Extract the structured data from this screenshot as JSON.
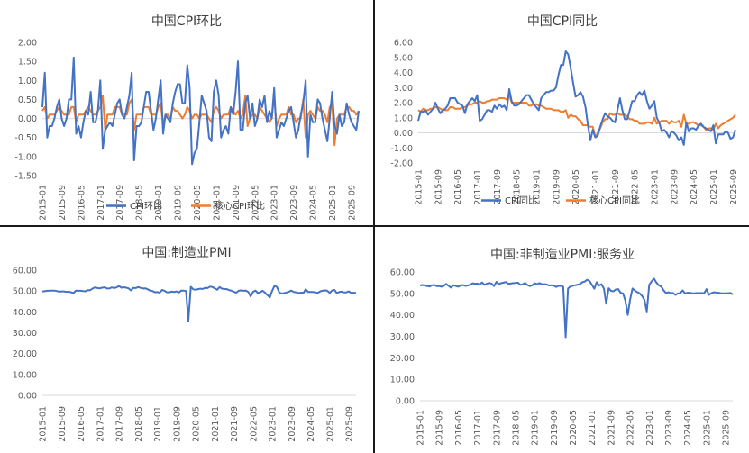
{
  "x_labels": [
    "2015-01",
    "2015-09",
    "2016-05",
    "2017-01",
    "2017-09",
    "2018-05",
    "2019-01",
    "2019-09",
    "2020-05",
    "2021-01",
    "2021-09",
    "2022-05",
    "2023-01",
    "2023-09",
    "2024-05",
    "2025-01",
    "2025-09"
  ],
  "colors": {
    "blue": "#4472C4",
    "orange": "#ED7D31",
    "zero": "#d9d9d9"
  },
  "chart_data": [
    {
      "type": "line",
      "title": "中国CPI环比",
      "x_labels_key": "x_labels",
      "y_ticks": [
        "2.00",
        "1.50",
        "1.00",
        "0.50",
        "0.00",
        "-0.50",
        "-1.00",
        "-1.50"
      ],
      "ylim": [
        -1.5,
        2.0
      ],
      "legend_position": "bottom",
      "series": [
        {
          "name": "CPI环比",
          "color": "blue",
          "values": [
            0.3,
            1.2,
            -0.5,
            -0.2,
            -0.2,
            0.0,
            0.3,
            0.5,
            0.0,
            -0.2,
            0.0,
            0.5,
            0.5,
            1.6,
            -0.4,
            -0.2,
            -0.5,
            -0.1,
            0.2,
            0.1,
            0.7,
            -0.1,
            -0.1,
            0.2,
            1.0,
            -0.8,
            -0.3,
            -0.2,
            -0.1,
            -0.2,
            0.1,
            0.4,
            0.5,
            0.1,
            0.0,
            0.3,
            0.6,
            1.2,
            -1.1,
            -0.2,
            -0.2,
            -0.1,
            0.3,
            0.7,
            0.7,
            0.2,
            -0.3,
            0.0,
            0.5,
            1.0,
            -0.4,
            0.1,
            0.0,
            -0.1,
            0.4,
            0.7,
            0.9,
            0.9,
            0.4,
            0.4,
            1.4,
            0.8,
            -1.2,
            -0.9,
            -0.8,
            -0.1,
            0.6,
            0.4,
            0.2,
            -0.5,
            -0.6,
            0.7,
            1.0,
            0.6,
            -0.5,
            -0.3,
            -0.2,
            -0.4,
            0.3,
            0.1,
            0.7,
            1.5,
            -0.3,
            -0.3,
            0.4,
            0.6,
            0.0,
            0.4,
            -0.2,
            0.0,
            0.5,
            0.3,
            0.6,
            -0.1,
            0.2,
            0.0,
            0.8,
            -0.5,
            -0.3,
            -0.1,
            -0.2,
            0.0,
            0.2,
            0.3,
            -0.1,
            -0.5,
            -0.3,
            0.1,
            0.4,
            1.0,
            -1.0,
            0.1,
            -0.1,
            -0.1,
            0.5,
            0.4,
            0.0,
            -0.3,
            -0.6,
            0.0,
            0.7,
            -0.2,
            -0.4,
            0.1,
            -0.2,
            -0.1,
            0.4,
            0.1,
            -0.1,
            -0.2,
            -0.3,
            0.2
          ]
        },
        {
          "name": "核心CPI环比",
          "color": "orange",
          "values": [
            0.2,
            0.3,
            0.0,
            0.1,
            0.1,
            0.1,
            0.2,
            0.3,
            0.2,
            0.1,
            0.1,
            0.1,
            0.3,
            0.3,
            -0.1,
            0.1,
            0.1,
            0.1,
            0.2,
            0.3,
            0.2,
            0.1,
            0.1,
            0.2,
            0.3,
            0.6,
            -0.3,
            0.1,
            0.1,
            0.1,
            0.3,
            0.3,
            0.3,
            0.1,
            0.1,
            0.1,
            0.4,
            0.5,
            -0.3,
            0.1,
            0.1,
            0.1,
            0.3,
            0.3,
            0.3,
            0.1,
            0.1,
            0.1,
            0.3,
            0.4,
            -0.2,
            0.1,
            0.1,
            0.0,
            0.3,
            0.2,
            0.2,
            0.1,
            0.0,
            0.1,
            0.3,
            0.2,
            0.0,
            0.1,
            0.1,
            0.0,
            0.1,
            0.1,
            0.1,
            0.0,
            -0.1,
            0.2,
            0.3,
            0.2,
            0.0,
            0.1,
            0.1,
            0.1,
            0.3,
            0.2,
            0.1,
            0.2,
            0.0,
            0.1,
            0.6,
            -0.2,
            0.0,
            0.1,
            0.1,
            0.0,
            0.3,
            0.2,
            0.1,
            0.0,
            -0.1,
            0.0,
            0.6,
            -0.2,
            0.0,
            0.1,
            0.1,
            0.1,
            0.3,
            0.1,
            0.1,
            -0.1,
            0.0,
            0.0,
            0.5,
            -0.5,
            0.1,
            0.2,
            0.1,
            0.0,
            0.3,
            0.2,
            0.2,
            0.1,
            -0.1,
            0.3,
            0.4,
            -0.7,
            0.0,
            0.1,
            0.1,
            0.1,
            0.3,
            0.3,
            0.2,
            0.2,
            0.1,
            0.2
          ]
        }
      ]
    },
    {
      "type": "line",
      "title": "中国CPI同比",
      "x_labels_key": "x_labels",
      "y_ticks": [
        "6.00",
        "5.00",
        "4.00",
        "3.00",
        "2.00",
        "1.00",
        "0.00",
        "-1.00",
        "-2.00"
      ],
      "ylim": [
        -2.0,
        6.0
      ],
      "legend_position": "bottom",
      "series": [
        {
          "name": "CPI同比",
          "color": "blue",
          "values": [
            0.8,
            1.4,
            1.4,
            1.5,
            1.2,
            1.4,
            1.6,
            2.0,
            1.6,
            1.3,
            1.5,
            1.6,
            1.8,
            2.3,
            2.3,
            2.3,
            2.0,
            1.9,
            1.8,
            1.3,
            1.9,
            2.1,
            2.3,
            2.1,
            2.5,
            0.8,
            0.9,
            1.2,
            1.5,
            1.5,
            1.4,
            1.8,
            1.6,
            1.9,
            1.7,
            1.8,
            1.5,
            2.9,
            2.1,
            1.8,
            1.8,
            1.9,
            2.1,
            2.3,
            2.5,
            2.5,
            2.2,
            1.9,
            1.7,
            1.5,
            2.3,
            2.5,
            2.7,
            2.7,
            2.8,
            2.8,
            3.0,
            3.8,
            4.5,
            4.5,
            5.4,
            5.2,
            4.3,
            3.3,
            2.4,
            2.5,
            2.7,
            2.4,
            1.7,
            0.5,
            -0.5,
            0.2,
            -0.3,
            -0.2,
            0.4,
            0.9,
            1.3,
            1.1,
            1.0,
            0.8,
            0.7,
            1.5,
            2.3,
            1.5,
            0.9,
            0.9,
            1.5,
            2.1,
            2.1,
            2.5,
            2.7,
            2.5,
            2.8,
            2.1,
            1.6,
            1.8,
            2.1,
            1.0,
            0.7,
            0.1,
            0.2,
            0.0,
            -0.3,
            0.1,
            0.0,
            -0.2,
            -0.5,
            -0.3,
            -0.8,
            0.7,
            0.1,
            0.3,
            0.3,
            0.2,
            0.5,
            0.6,
            0.4,
            0.3,
            0.2,
            0.1,
            0.5,
            -0.7,
            -0.1,
            -0.1,
            -0.1,
            0.1,
            0.0,
            -0.4,
            -0.3,
            0.2
          ]
        },
        {
          "name": "核心CPI同比",
          "color": "orange",
          "values": [
            1.5,
            1.4,
            1.6,
            1.5,
            1.5,
            1.6,
            1.6,
            1.7,
            1.7,
            1.6,
            1.5,
            1.5,
            1.5,
            1.7,
            1.7,
            1.6,
            1.6,
            1.6,
            1.7,
            1.7,
            1.8,
            1.9,
            1.9,
            2.0,
            2.0,
            2.1,
            2.0,
            2.0,
            2.1,
            2.1,
            2.2,
            2.2,
            2.2,
            2.3,
            2.3,
            2.3,
            2.2,
            2.5,
            2.0,
            2.0,
            2.0,
            2.0,
            2.0,
            2.0,
            2.0,
            1.8,
            1.8,
            1.9,
            1.9,
            1.8,
            1.8,
            1.7,
            1.6,
            1.6,
            1.6,
            1.5,
            1.5,
            1.5,
            1.4,
            1.4,
            1.5,
            1.0,
            1.2,
            1.1,
            1.1,
            0.9,
            0.8,
            0.5,
            0.5,
            0.5,
            0.4,
            0.4,
            -0.3,
            0.0,
            0.3,
            0.7,
            0.9,
            0.9,
            1.3,
            1.2,
            1.2,
            1.3,
            1.2,
            1.2,
            1.2,
            1.1,
            0.9,
            0.9,
            0.8,
            0.8,
            0.6,
            0.6,
            0.6,
            0.7,
            0.7,
            0.6,
            1.0,
            0.6,
            0.7,
            0.8,
            0.8,
            0.8,
            0.6,
            0.8,
            0.7,
            0.7,
            0.8,
            0.4,
            1.2,
            0.6,
            0.6,
            0.7,
            0.7,
            0.6,
            0.5,
            0.5,
            0.4,
            0.2,
            0.3,
            0.3,
            0.2,
            0.6,
            0.3,
            0.5,
            0.6,
            0.7,
            0.8,
            0.9,
            1.0,
            1.2
          ]
        }
      ]
    },
    {
      "type": "line",
      "title": "中国:制造业PMI",
      "x_labels_key": "x_labels",
      "y_ticks": [
        "60.00",
        "50.00",
        "40.00",
        "30.00",
        "20.00",
        "10.00",
        "0.00"
      ],
      "ylim": [
        0,
        60
      ],
      "legend_position": "none",
      "series": [
        {
          "name": "",
          "color": "blue",
          "values": [
            49.8,
            49.9,
            50.1,
            50.1,
            50.2,
            50.2,
            50.0,
            49.7,
            49.8,
            49.8,
            49.6,
            49.7,
            49.4,
            49.0,
            50.2,
            50.1,
            50.1,
            50.0,
            49.9,
            50.4,
            50.4,
            51.2,
            51.7,
            51.4,
            51.3,
            51.6,
            51.8,
            51.2,
            51.2,
            51.7,
            51.4,
            51.7,
            52.4,
            51.6,
            51.8,
            51.6,
            51.3,
            50.3,
            51.5,
            51.4,
            51.9,
            51.5,
            51.2,
            51.3,
            50.8,
            50.2,
            50.0,
            49.4,
            49.5,
            49.2,
            50.5,
            50.1,
            49.4,
            49.4,
            49.7,
            49.5,
            49.8,
            49.3,
            50.2,
            50.2,
            50.0,
            35.7,
            52.0,
            50.8,
            50.6,
            50.9,
            51.1,
            51.0,
            51.5,
            51.4,
            52.1,
            51.9,
            51.3,
            50.6,
            51.9,
            51.1,
            51.0,
            50.9,
            50.4,
            50.1,
            49.6,
            49.2,
            50.1,
            50.3,
            50.1,
            50.2,
            49.5,
            47.4,
            49.6,
            50.2,
            49.0,
            49.4,
            50.1,
            49.2,
            48.0,
            47.0,
            50.1,
            52.6,
            51.9,
            49.2,
            48.8,
            49.0,
            49.3,
            49.7,
            50.2,
            49.5,
            49.4,
            49.0,
            49.2,
            49.1,
            50.8,
            49.5,
            49.5,
            49.5,
            49.4,
            49.1,
            49.8,
            50.1,
            50.3,
            50.1,
            49.1,
            50.2,
            50.5,
            49.0,
            49.5,
            49.7,
            49.3,
            49.4,
            49.8,
            49.0,
            49.2,
            49.0
          ]
        }
      ]
    },
    {
      "type": "line",
      "title": "中国:非制造业PMI:服务业",
      "x_labels_key": "x_labels",
      "y_ticks": [
        "60.00",
        "50.00",
        "40.00",
        "30.00",
        "20.00",
        "10.00",
        "0.00"
      ],
      "ylim": [
        0,
        60
      ],
      "legend_position": "none",
      "series": [
        {
          "name": "",
          "color": "blue",
          "values": [
            53.7,
            53.9,
            53.7,
            53.4,
            53.2,
            53.8,
            53.9,
            53.4,
            53.4,
            53.1,
            53.6,
            54.4,
            53.5,
            52.7,
            53.8,
            53.5,
            53.1,
            53.7,
            53.9,
            53.5,
            53.7,
            54.0,
            54.7,
            54.5,
            54.6,
            54.2,
            55.1,
            54.0,
            54.5,
            54.9,
            54.5,
            53.4,
            55.4,
            54.3,
            54.8,
            55.0,
            55.3,
            54.4,
            54.6,
            54.8,
            54.9,
            55.0,
            54.0,
            54.2,
            54.9,
            53.9,
            53.4,
            53.8,
            54.7,
            54.3,
            54.8,
            54.3,
            54.3,
            54.2,
            53.7,
            53.8,
            53.7,
            53.0,
            53.5,
            53.5,
            53.1,
            29.6,
            52.3,
            53.2,
            53.6,
            53.8,
            54.1,
            54.3,
            55.2,
            55.5,
            56.4,
            55.7,
            54.0,
            52.2,
            55.2,
            53.7,
            54.3,
            52.3,
            45.2,
            52.4,
            51.2,
            51.0,
            51.8,
            52.0,
            50.3,
            50.0,
            46.7,
            40.0,
            47.1,
            52.3,
            51.3,
            50.6,
            50.0,
            48.9,
            47.0,
            41.6,
            54.0,
            55.6,
            56.9,
            55.1,
            53.8,
            53.2,
            51.5,
            50.2,
            50.5,
            50.1,
            50.2,
            49.3,
            50.0,
            50.1,
            51.4,
            50.0,
            50.3,
            50.3,
            50.1,
            50.0,
            50.2,
            50.1,
            50.2,
            50.0,
            52.0,
            49.3,
            50.1,
            50.5,
            50.4,
            50.3,
            50.1,
            50.0,
            50.0,
            50.1,
            50.2,
            49.5
          ]
        }
      ]
    }
  ]
}
